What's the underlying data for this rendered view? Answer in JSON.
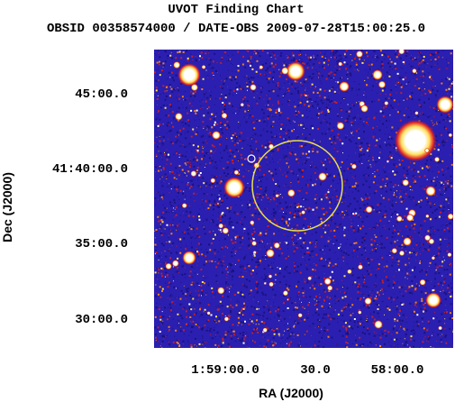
{
  "header": {
    "title": "UVOT Finding Chart",
    "subtitle": "OBSID 00358574000 / DATE-OBS 2009-07-28T15:00:25.0"
  },
  "axes": {
    "x_label": "RA (J2000)",
    "y_label": "Dec (J2000)",
    "x_tick_labels": [
      "1:59:00.0",
      "30.0",
      "58:00.0"
    ],
    "y_tick_labels": [
      "45:00.0",
      "41:40:00.0",
      "35:00.0",
      "30:00.0"
    ]
  }
}
